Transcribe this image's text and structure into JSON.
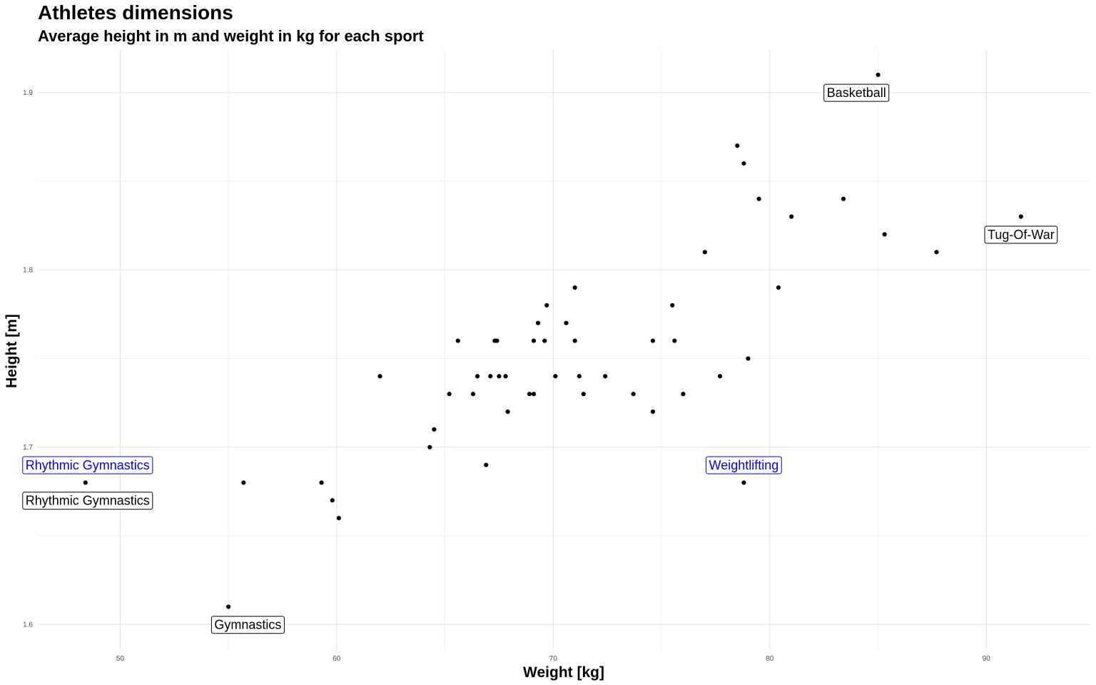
{
  "chart_data": {
    "type": "scatter",
    "title": "Athletes dimensions",
    "subtitle": "Average height in m and weight in kg for each sport",
    "xlabel": "Weight [kg]",
    "ylabel": "Height [m]",
    "xlim": [
      46.2,
      94.8
    ],
    "ylim": [
      1.586,
      1.924
    ],
    "x_ticks": [
      50,
      60,
      70,
      80,
      90
    ],
    "x_tick_labels": [
      "50",
      "60",
      "70",
      "80",
      "90"
    ],
    "y_ticks": [
      1.6,
      1.7,
      1.8,
      1.9
    ],
    "y_tick_labels": [
      "1.6",
      "1.7",
      "1.8",
      "1.9"
    ],
    "x_minor_ticks": [
      55,
      65,
      75,
      85
    ],
    "y_minor_ticks": [
      1.65,
      1.75,
      1.85
    ],
    "grid": true,
    "point_color": "#000000",
    "points": [
      {
        "x": 85.0,
        "y": 1.91
      },
      {
        "x": 78.5,
        "y": 1.87
      },
      {
        "x": 78.8,
        "y": 1.86
      },
      {
        "x": 79.5,
        "y": 1.84
      },
      {
        "x": 83.4,
        "y": 1.84
      },
      {
        "x": 81.0,
        "y": 1.83
      },
      {
        "x": 91.6,
        "y": 1.83
      },
      {
        "x": 85.3,
        "y": 1.82
      },
      {
        "x": 77.0,
        "y": 1.81
      },
      {
        "x": 87.7,
        "y": 1.81
      },
      {
        "x": 71.0,
        "y": 1.79
      },
      {
        "x": 80.4,
        "y": 1.79
      },
      {
        "x": 69.7,
        "y": 1.78
      },
      {
        "x": 75.5,
        "y": 1.78
      },
      {
        "x": 69.3,
        "y": 1.77
      },
      {
        "x": 70.6,
        "y": 1.77
      },
      {
        "x": 65.6,
        "y": 1.76
      },
      {
        "x": 67.3,
        "y": 1.76
      },
      {
        "x": 67.4,
        "y": 1.76
      },
      {
        "x": 69.1,
        "y": 1.76
      },
      {
        "x": 69.6,
        "y": 1.76
      },
      {
        "x": 71.0,
        "y": 1.76
      },
      {
        "x": 74.6,
        "y": 1.76
      },
      {
        "x": 75.6,
        "y": 1.76
      },
      {
        "x": 62.0,
        "y": 1.74
      },
      {
        "x": 66.5,
        "y": 1.74
      },
      {
        "x": 67.1,
        "y": 1.74
      },
      {
        "x": 67.5,
        "y": 1.74
      },
      {
        "x": 67.8,
        "y": 1.74
      },
      {
        "x": 70.1,
        "y": 1.74
      },
      {
        "x": 71.2,
        "y": 1.74
      },
      {
        "x": 72.4,
        "y": 1.74
      },
      {
        "x": 77.7,
        "y": 1.74
      },
      {
        "x": 79.0,
        "y": 1.75
      },
      {
        "x": 65.2,
        "y": 1.73
      },
      {
        "x": 66.3,
        "y": 1.73
      },
      {
        "x": 68.9,
        "y": 1.73
      },
      {
        "x": 69.1,
        "y": 1.73
      },
      {
        "x": 71.4,
        "y": 1.73
      },
      {
        "x": 73.7,
        "y": 1.73
      },
      {
        "x": 76.0,
        "y": 1.73
      },
      {
        "x": 67.9,
        "y": 1.72
      },
      {
        "x": 74.6,
        "y": 1.72
      },
      {
        "x": 64.5,
        "y": 1.71
      },
      {
        "x": 64.3,
        "y": 1.7
      },
      {
        "x": 66.9,
        "y": 1.69
      },
      {
        "x": 48.4,
        "y": 1.68
      },
      {
        "x": 55.7,
        "y": 1.68
      },
      {
        "x": 59.3,
        "y": 1.68
      },
      {
        "x": 78.8,
        "y": 1.68
      },
      {
        "x": 59.8,
        "y": 1.67
      },
      {
        "x": 60.1,
        "y": 1.66
      },
      {
        "x": 55.0,
        "y": 1.61
      }
    ],
    "annotations": [
      {
        "text": "Basketball",
        "x": 84.0,
        "y": 1.9,
        "color": "#000000"
      },
      {
        "text": "Tug-Of-War",
        "x": 91.6,
        "y": 1.82,
        "color": "#000000"
      },
      {
        "text": "Rhythmic Gymnastics",
        "x": 48.5,
        "y": 1.69,
        "color": "#0000ee"
      },
      {
        "text": "Rhythmic Gymnastics",
        "x": 48.5,
        "y": 1.67,
        "color": "#000000"
      },
      {
        "text": "Weightlifting",
        "x": 78.8,
        "y": 1.69,
        "color": "#0000ee"
      },
      {
        "text": "Gymnastics",
        "x": 55.9,
        "y": 1.6,
        "color": "#000000"
      }
    ]
  }
}
